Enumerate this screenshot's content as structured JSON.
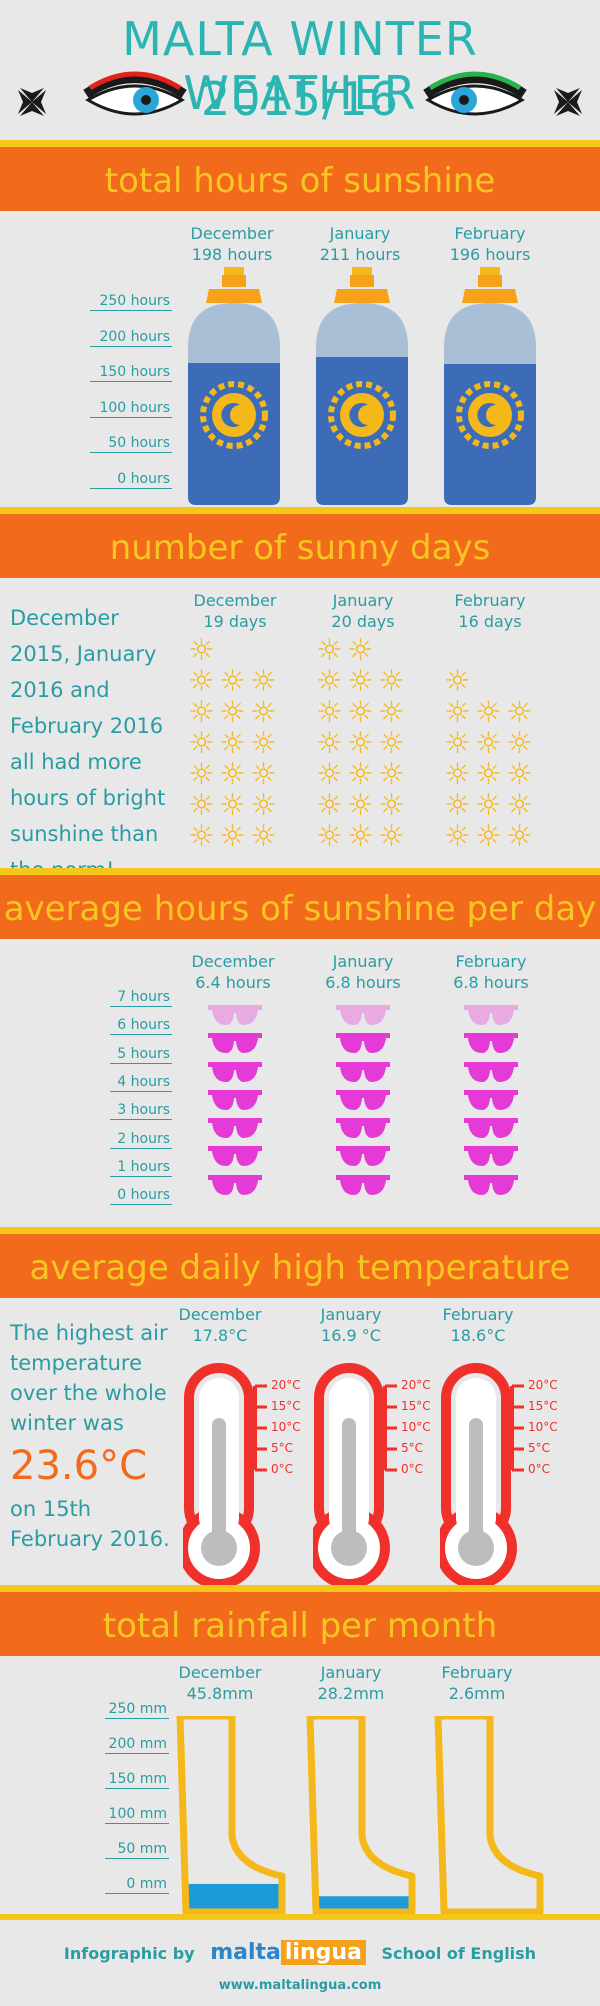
{
  "header": {
    "title_line1": "MALTA WINTER WEATHER",
    "title_line2": "2015/16"
  },
  "colors": {
    "orange": "#f26a1b",
    "yellow": "#f5c71a",
    "teal": "#2ab5b2",
    "blue": "#3c6cb8",
    "magenta": "#e63ad6",
    "red": "#f0302a"
  },
  "sunshine": {
    "title": "total hours of sunshine",
    "months": [
      {
        "name": "December",
        "value": "198 hours",
        "hours": 198
      },
      {
        "name": "January",
        "value": "211 hours",
        "hours": 211
      },
      {
        "name": "February",
        "value": "196 hours",
        "hours": 196
      }
    ],
    "ticks": [
      "250 hours",
      "200 hours",
      "150 hours",
      "100 hours",
      "50 hours",
      "0 hours"
    ]
  },
  "sunny_days": {
    "title": "number of sunny days",
    "note": "December 2015, January 2016 and February 2016 all had more hours of bright sunshine than the norm!",
    "months": [
      {
        "name": "December",
        "value": "19 days",
        "days": 19
      },
      {
        "name": "January",
        "value": "20 days",
        "days": 20
      },
      {
        "name": "February",
        "value": "16 days",
        "days": 16
      }
    ]
  },
  "daily": {
    "title": "average hours of sunshine per day",
    "months": [
      {
        "name": "December",
        "value": "6.4 hours",
        "hours": 6.4
      },
      {
        "name": "January",
        "value": "6.8 hours",
        "hours": 6.8
      },
      {
        "name": "February",
        "value": "6.8 hours",
        "hours": 6.8
      }
    ],
    "ticks": [
      "7 hours",
      "6 hours",
      "5 hours",
      "4 hours",
      "3 hours",
      "2 hours",
      "1 hours",
      "0 hours"
    ]
  },
  "temperature": {
    "title": "average daily high temperature",
    "note_a": "The highest air temperature over the whole winter was",
    "highlight": "23.6°C",
    "note_b": "on 15th February 2016.",
    "months": [
      {
        "name": "December",
        "value": "17.8°C"
      },
      {
        "name": "January",
        "value": "16.9 °C"
      },
      {
        "name": "February",
        "value": "18.6°C"
      }
    ],
    "ticks": [
      "20°C",
      "15°C",
      "10°C",
      "5°C",
      "0°C"
    ]
  },
  "rain": {
    "title": "total rainfall per month",
    "months": [
      {
        "name": "December",
        "value": "45.8mm",
        "mm": 45.8
      },
      {
        "name": "January",
        "value": "28.2mm",
        "mm": 28.2
      },
      {
        "name": "February",
        "value": "2.6mm",
        "mm": 2.6
      }
    ],
    "ticks": [
      "250 mm",
      "200 mm",
      "150 mm",
      "100 mm",
      "50 mm",
      "0 mm"
    ]
  },
  "footer": {
    "by": "Infographic by",
    "brand_a": "malta",
    "brand_b": "lingua",
    "school": "School of English",
    "url": "www.maltalingua.com"
  }
}
